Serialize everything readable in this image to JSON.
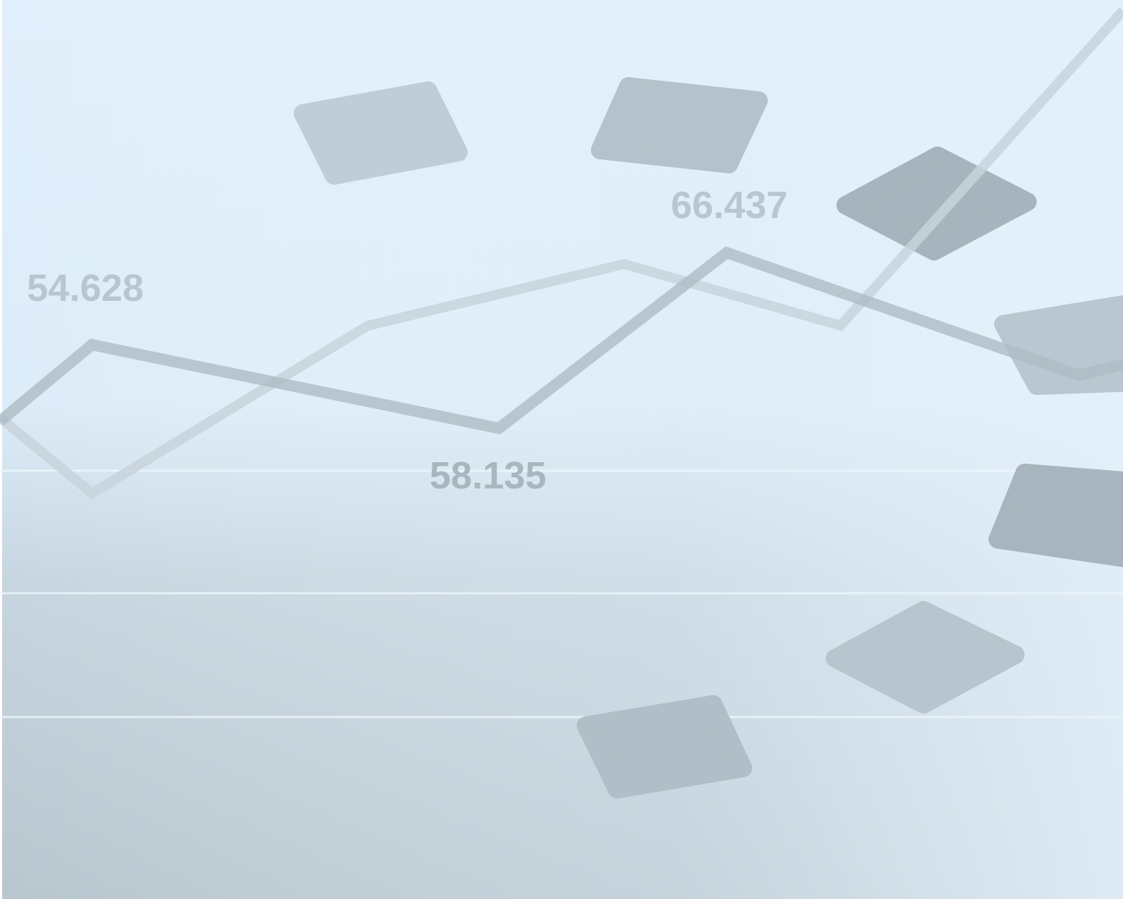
{
  "labels": [
    "54.628",
    "66.437",
    "58.135"
  ]
}
